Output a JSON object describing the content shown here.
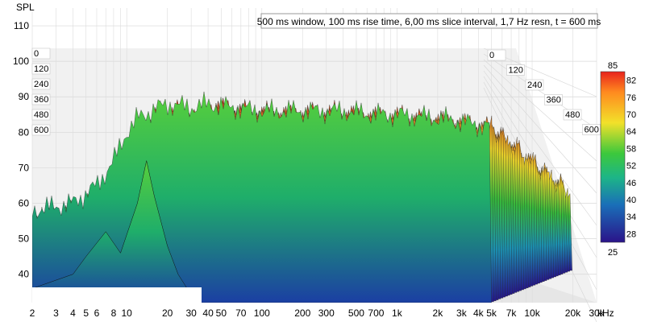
{
  "chart_data": {
    "type": "waterfall",
    "title": "500 ms window, 100 ms rise time, 6,00 ms slice interval, 1,7 Hz resn, t = 600 ms",
    "ylabel": "SPL",
    "xlabel_unit": "kHz",
    "x_scale": "log",
    "xlim": [
      2,
      30000
    ],
    "ylim": [
      32,
      115
    ],
    "y_ticks": [
      40,
      50,
      60,
      70,
      80,
      90,
      100,
      110
    ],
    "x_ticks": [
      {
        "value": 2,
        "label": "2"
      },
      {
        "value": 3,
        "label": "3"
      },
      {
        "value": 4,
        "label": "4"
      },
      {
        "value": 5,
        "label": "5"
      },
      {
        "value": 6,
        "label": "6"
      },
      {
        "value": 8,
        "label": "8"
      },
      {
        "value": 10,
        "label": "10"
      },
      {
        "value": 20,
        "label": "20"
      },
      {
        "value": 30,
        "label": "30"
      },
      {
        "value": 40,
        "label": "40"
      },
      {
        "value": 50,
        "label": "50"
      },
      {
        "value": 70,
        "label": "70"
      },
      {
        "value": 100,
        "label": "100"
      },
      {
        "value": 200,
        "label": "200"
      },
      {
        "value": 300,
        "label": "300"
      },
      {
        "value": 500,
        "label": "500"
      },
      {
        "value": 700,
        "label": "700"
      },
      {
        "value": 1000,
        "label": "1k"
      },
      {
        "value": 2000,
        "label": "2k"
      },
      {
        "value": 3000,
        "label": "3k"
      },
      {
        "value": 4000,
        "label": "4k"
      },
      {
        "value": 5000,
        "label": "5k"
      },
      {
        "value": 7000,
        "label": "7k"
      },
      {
        "value": 10000,
        "label": "10k"
      },
      {
        "value": 20000,
        "label": "20k"
      },
      {
        "value": 30000,
        "label": "30k"
      }
    ],
    "time_axis_labels": [
      "0",
      "120",
      "240",
      "360",
      "480",
      "600"
    ],
    "time_axis_labels_right": [
      "0",
      "120",
      "240",
      "360",
      "480",
      "600"
    ],
    "colorbar": {
      "max_label": "85",
      "min_label": "25",
      "ticks": [
        "82",
        "76",
        "70",
        "64",
        "58",
        "52",
        "46",
        "40",
        "34",
        "28"
      ],
      "range": [
        25,
        85
      ]
    },
    "series_envelope_front": {
      "description_values": "approximate peak SPL (dB) per frequency (Hz) of first slice",
      "freq": [
        2,
        4,
        6,
        8,
        10,
        12,
        15,
        20,
        30,
        40,
        60,
        100,
        200,
        400,
        700,
        1000,
        2000,
        3000,
        4000,
        5000
      ],
      "spl": [
        58,
        60,
        65,
        72,
        80,
        84,
        86,
        88,
        87,
        88,
        87,
        86,
        86,
        86,
        85,
        85,
        84,
        83,
        82,
        82
      ]
    },
    "grid": true
  }
}
